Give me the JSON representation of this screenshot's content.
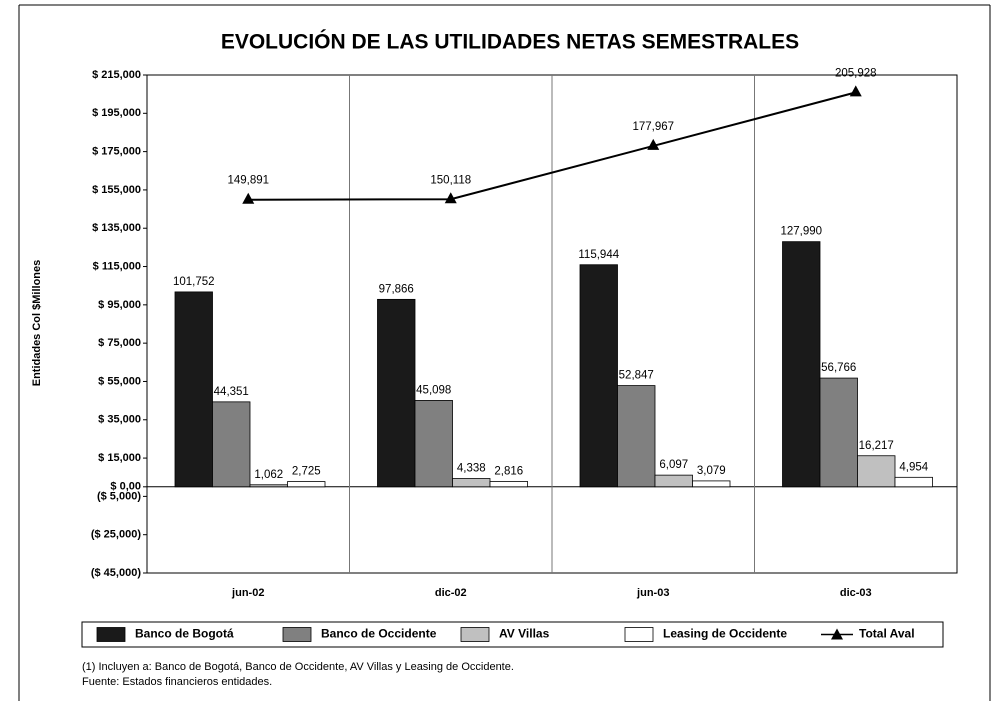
{
  "chart_data": {
    "type": "bar",
    "title": "EVOLUCIÓN DE LAS UTILIDADES NETAS SEMESTRALES",
    "y_label": "Entidades Col $Millones",
    "categories": [
      "jun-02",
      "dic-02",
      "jun-03",
      "dic-03"
    ],
    "series": [
      {
        "name": "Banco de Bogotá",
        "color": "#1a1a1a",
        "values": [
          101752,
          97866,
          115944,
          127990
        ],
        "value_labels": [
          "101,752",
          "97,866",
          "115,944",
          "127,990"
        ]
      },
      {
        "name": "Banco de Occidente",
        "color": "#808080",
        "values": [
          44351,
          45098,
          52847,
          56766
        ],
        "value_labels": [
          "44,351",
          "45,098",
          "52,847",
          "56,766"
        ]
      },
      {
        "name": "AV Villas",
        "color": "#c0c0c0",
        "values": [
          1062,
          4338,
          6097,
          16217
        ],
        "value_labels": [
          "1,062",
          "4,338",
          "6,097",
          "16,217"
        ]
      },
      {
        "name": "Leasing de Occidente",
        "color": "#ffffff",
        "values": [
          2725,
          2816,
          3079,
          4954
        ],
        "value_labels": [
          "2,725",
          "2,816",
          "3,079",
          "4,954"
        ]
      },
      {
        "name": "Total Aval",
        "color": "#000000",
        "type": "line",
        "values": [
          149891,
          150118,
          177967,
          205928
        ],
        "value_labels": [
          "149,891",
          "150,118",
          "177,967",
          "205,928"
        ]
      }
    ],
    "ylim": [
      -45000,
      215000
    ],
    "yticks": [
      {
        "value": 215000,
        "label": "$ 215,000"
      },
      {
        "value": 195000,
        "label": "$ 195,000"
      },
      {
        "value": 175000,
        "label": "$ 175,000"
      },
      {
        "value": 155000,
        "label": "$ 155,000"
      },
      {
        "value": 135000,
        "label": "$ 135,000"
      },
      {
        "value": 115000,
        "label": "$ 115,000"
      },
      {
        "value": 95000,
        "label": "$ 95,000"
      },
      {
        "value": 75000,
        "label": "$ 75,000"
      },
      {
        "value": 55000,
        "label": "$ 55,000"
      },
      {
        "value": 35000,
        "label": "$ 35,000"
      },
      {
        "value": 15000,
        "label": "$ 15,000"
      },
      {
        "value": 0,
        "label": "$ 0,00"
      },
      {
        "value": -5000,
        "label": "($ 5,000)"
      },
      {
        "value": -25000,
        "label": "($ 25,000)"
      },
      {
        "value": -45000,
        "label": "($ 45,000)"
      }
    ],
    "notes": [
      "(1) Incluyen a: Banco de Bogotá, Banco de Occidente, AV Villas y Leasing de Occidente.",
      "Fuente: Estados financieros entidades."
    ]
  }
}
